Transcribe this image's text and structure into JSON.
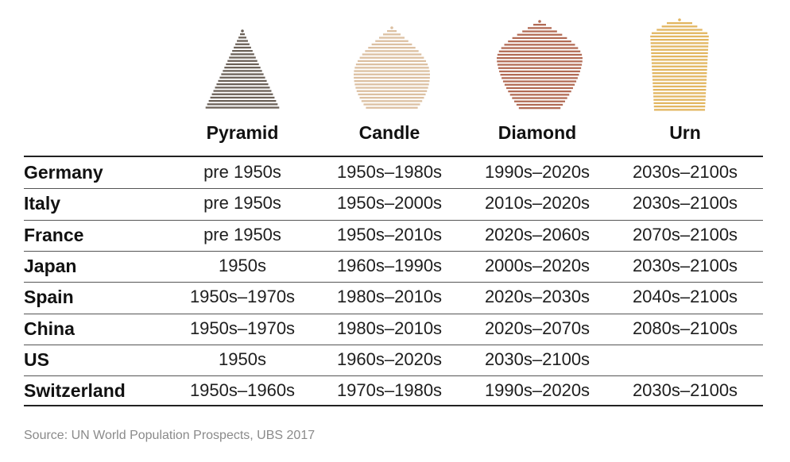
{
  "chart_data": {
    "type": "table",
    "shapes": [
      {
        "name": "Pyramid",
        "color": "#6b6158"
      },
      {
        "name": "Candle",
        "color": "#dcc0a2"
      },
      {
        "name": "Diamond",
        "color": "#b26b55"
      },
      {
        "name": "Urn",
        "color": "#e2b660"
      }
    ],
    "columns": [
      "Pyramid",
      "Candle",
      "Diamond",
      "Urn"
    ],
    "rows": [
      {
        "country": "Germany",
        "values": [
          "pre 1950s",
          "1950s–1980s",
          "1990s–2020s",
          "2030s–2100s"
        ]
      },
      {
        "country": "Italy",
        "values": [
          "pre 1950s",
          "1950s–2000s",
          "2010s–2020s",
          "2030s–2100s"
        ]
      },
      {
        "country": "France",
        "values": [
          "pre 1950s",
          "1950s–2010s",
          "2020s–2060s",
          "2070s–2100s"
        ]
      },
      {
        "country": "Japan",
        "values": [
          "1950s",
          "1960s–1990s",
          "2000s–2020s",
          "2030s–2100s"
        ]
      },
      {
        "country": "Spain",
        "values": [
          "1950s–1970s",
          "1980s–2010s",
          "2020s–2030s",
          "2040s–2100s"
        ]
      },
      {
        "country": "China",
        "values": [
          "1950s–1970s",
          "1980s–2010s",
          "2020s–2070s",
          "2080s–2100s"
        ]
      },
      {
        "country": "US",
        "values": [
          "1950s",
          "1960s–2020s",
          "2030s–2100s",
          ""
        ]
      },
      {
        "country": "Switzerland",
        "values": [
          "1950s–1960s",
          "1970s–1980s",
          "1990s–2020s",
          "2030s–2100s"
        ]
      }
    ],
    "source": "Source: UN World Population Prospects, UBS 2017"
  }
}
